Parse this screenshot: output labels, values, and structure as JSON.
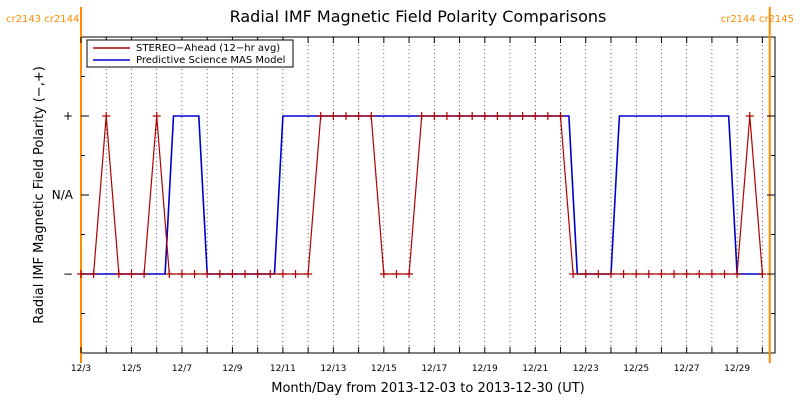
{
  "chart_data": {
    "type": "line",
    "title": "Radial IMF Magnetic Field Polarity Comparisons",
    "xlabel": "Month/Day from 2013-12-03 to 2013-12-30 (UT)",
    "ylabel": "Radial IMF Magnetic Field Polarity (−,+)",
    "x_range": [
      "2013-12-03",
      "2013-12-30 12:00"
    ],
    "x_tick_labels": [
      "12/3",
      "12/5",
      "12/7",
      "12/9",
      "12/11",
      "12/13",
      "12/15",
      "12/17",
      "12/19",
      "12/21",
      "12/23",
      "12/25",
      "12/27",
      "12/29"
    ],
    "y_tick_labels": [
      "−",
      "N/A",
      "+"
    ],
    "y_levels": {
      "minus": -1,
      "na": 0,
      "plus": 1
    },
    "ylim": [
      -2,
      2
    ],
    "carrington_labels": {
      "left": "cr2143  cr2144",
      "right": "cr2144  cr2145",
      "color": "#ff8c00"
    },
    "carrington_boundaries": [
      "2013-12-03",
      "2013-12-30 07:00"
    ],
    "legend_position": "top-left",
    "series": [
      {
        "name": "STEREO−Ahead (12−hr avg)",
        "color": "#b00000",
        "markers": true,
        "points": [
          [
            "2013-12-03 00:00",
            -1
          ],
          [
            "2013-12-03 12:00",
            -1
          ],
          [
            "2013-12-04 00:00",
            1
          ],
          [
            "2013-12-04 12:00",
            -1
          ],
          [
            "2013-12-05 00:00",
            -1
          ],
          [
            "2013-12-05 12:00",
            -1
          ],
          [
            "2013-12-06 00:00",
            1
          ],
          [
            "2013-12-06 12:00",
            -1
          ],
          [
            "2013-12-07 00:00",
            -1
          ],
          [
            "2013-12-07 12:00",
            -1
          ],
          [
            "2013-12-08 00:00",
            -1
          ],
          [
            "2013-12-08 12:00",
            -1
          ],
          [
            "2013-12-09 00:00",
            -1
          ],
          [
            "2013-12-09 12:00",
            -1
          ],
          [
            "2013-12-10 00:00",
            -1
          ],
          [
            "2013-12-10 12:00",
            -1
          ],
          [
            "2013-12-11 00:00",
            -1
          ],
          [
            "2013-12-11 12:00",
            -1
          ],
          [
            "2013-12-12 00:00",
            -1
          ],
          [
            "2013-12-12 12:00",
            1
          ],
          [
            "2013-12-13 00:00",
            1
          ],
          [
            "2013-12-13 12:00",
            1
          ],
          [
            "2013-12-14 00:00",
            1
          ],
          [
            "2013-12-14 12:00",
            1
          ],
          [
            "2013-12-15 00:00",
            -1
          ],
          [
            "2013-12-15 12:00",
            -1
          ],
          [
            "2013-12-16 00:00",
            -1
          ],
          [
            "2013-12-16 12:00",
            1
          ],
          [
            "2013-12-17 00:00",
            1
          ],
          [
            "2013-12-17 12:00",
            1
          ],
          [
            "2013-12-18 00:00",
            1
          ],
          [
            "2013-12-18 12:00",
            1
          ],
          [
            "2013-12-19 00:00",
            1
          ],
          [
            "2013-12-19 12:00",
            1
          ],
          [
            "2013-12-20 00:00",
            1
          ],
          [
            "2013-12-20 12:00",
            1
          ],
          [
            "2013-12-21 00:00",
            1
          ],
          [
            "2013-12-21 12:00",
            1
          ],
          [
            "2013-12-22 00:00",
            1
          ],
          [
            "2013-12-22 12:00",
            -1
          ],
          [
            "2013-12-23 00:00",
            -1
          ],
          [
            "2013-12-23 12:00",
            -1
          ],
          [
            "2013-12-24 00:00",
            -1
          ],
          [
            "2013-12-24 12:00",
            -1
          ],
          [
            "2013-12-25 00:00",
            -1
          ],
          [
            "2013-12-25 12:00",
            -1
          ],
          [
            "2013-12-26 00:00",
            -1
          ],
          [
            "2013-12-26 12:00",
            -1
          ],
          [
            "2013-12-27 00:00",
            -1
          ],
          [
            "2013-12-27 12:00",
            -1
          ],
          [
            "2013-12-28 00:00",
            -1
          ],
          [
            "2013-12-28 12:00",
            -1
          ],
          [
            "2013-12-29 00:00",
            -1
          ],
          [
            "2013-12-29 12:00",
            1
          ],
          [
            "2013-12-30 00:00",
            -1
          ]
        ]
      },
      {
        "name": "Predictive Science MAS Model",
        "color": "#0000c8",
        "markers": false,
        "points": [
          [
            "2013-12-03 00:00",
            -1
          ],
          [
            "2013-12-06 08:00",
            -1
          ],
          [
            "2013-12-06 16:00",
            1
          ],
          [
            "2013-12-07 16:00",
            1
          ],
          [
            "2013-12-08 00:00",
            -1
          ],
          [
            "2013-12-10 16:00",
            -1
          ],
          [
            "2013-12-11 00:00",
            1
          ],
          [
            "2013-12-22 08:00",
            1
          ],
          [
            "2013-12-22 16:00",
            -1
          ],
          [
            "2013-12-24 00:00",
            -1
          ],
          [
            "2013-12-24 08:00",
            1
          ],
          [
            "2013-12-28 16:00",
            1
          ],
          [
            "2013-12-29 00:00",
            -1
          ],
          [
            "2013-12-30 00:00",
            -1
          ]
        ]
      }
    ]
  }
}
